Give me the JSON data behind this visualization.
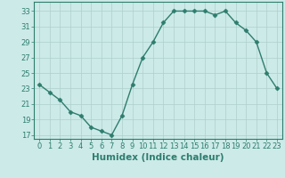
{
  "x": [
    0,
    1,
    2,
    3,
    4,
    5,
    6,
    7,
    8,
    9,
    10,
    11,
    12,
    13,
    14,
    15,
    16,
    17,
    18,
    19,
    20,
    21,
    22,
    23
  ],
  "y": [
    23.5,
    22.5,
    21.5,
    20.0,
    19.5,
    18.0,
    17.5,
    17.0,
    19.5,
    23.5,
    27.0,
    29.0,
    31.5,
    33.0,
    33.0,
    33.0,
    33.0,
    32.5,
    33.0,
    31.5,
    30.5,
    29.0,
    25.0,
    23.0
  ],
  "line_color": "#2e7d6e",
  "marker": "D",
  "marker_size": 2.5,
  "bg_color": "#cceae8",
  "grid_color": "#aecfcc",
  "grid_minor_color": "#c2e0de",
  "xlabel": "Humidex (Indice chaleur)",
  "ylabel_ticks": [
    17,
    19,
    21,
    23,
    25,
    27,
    29,
    31,
    33
  ],
  "xlabel_ticks": [
    0,
    1,
    2,
    3,
    4,
    5,
    6,
    7,
    8,
    9,
    10,
    11,
    12,
    13,
    14,
    15,
    16,
    17,
    18,
    19,
    20,
    21,
    22,
    23
  ],
  "ylim": [
    16.5,
    34.2
  ],
  "xlim": [
    -0.5,
    23.5
  ],
  "axis_color": "#2e7d6e",
  "tick_color": "#2e7d6e",
  "label_fontsize": 7.5,
  "tick_fontsize": 6.0
}
